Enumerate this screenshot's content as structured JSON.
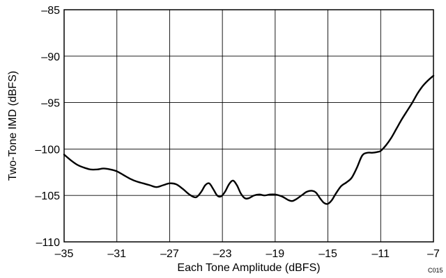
{
  "chart_data": {
    "type": "line",
    "title": "",
    "xlabel": "Each Tone Amplitude (dBFS)",
    "ylabel": "Two-Tone IMD (dBFS)",
    "xlim": [
      -35,
      -7
    ],
    "ylim": [
      -110,
      -85
    ],
    "x_ticks": [
      -35,
      -31,
      -27,
      -23,
      -19,
      -15,
      -11,
      -7
    ],
    "y_ticks": [
      -85,
      -90,
      -95,
      -100,
      -105,
      -110
    ],
    "x_tick_labels": [
      "–35",
      "–31",
      "–27",
      "–23",
      "–19",
      "–15",
      "–11",
      "–7"
    ],
    "y_tick_labels": [
      "–85",
      "–90",
      "–95",
      "–100",
      "–105",
      "–110"
    ],
    "grid": true,
    "series": [
      {
        "color": "#000000",
        "x": [
          -35,
          -34.5,
          -34,
          -33.5,
          -33,
          -32.5,
          -32,
          -31.5,
          -31,
          -30.5,
          -30,
          -29.5,
          -29,
          -28.5,
          -28,
          -27.5,
          -27,
          -26.5,
          -26,
          -25.5,
          -25,
          -24.6,
          -24.3,
          -24,
          -23.7,
          -23.4,
          -23.1,
          -22.8,
          -22.5,
          -22.2,
          -21.9,
          -21.6,
          -21.3,
          -21,
          -20.6,
          -20.2,
          -19.8,
          -19.4,
          -19,
          -18.5,
          -18,
          -17.7,
          -17.4,
          -17,
          -16.6,
          -16.2,
          -15.9,
          -15.6,
          -15.3,
          -15,
          -14.7,
          -14.4,
          -14,
          -13.6,
          -13.2,
          -12.8,
          -12.4,
          -12,
          -11.6,
          -11.2,
          -11,
          -10.6,
          -10.2,
          -9.8,
          -9.4,
          -9,
          -8.6,
          -8.2,
          -7.8,
          -7.4,
          -7
        ],
        "y": [
          -100.6,
          -101.2,
          -101.7,
          -102.0,
          -102.2,
          -102.2,
          -102.1,
          -102.2,
          -102.4,
          -102.8,
          -103.2,
          -103.5,
          -103.7,
          -103.9,
          -104.1,
          -103.9,
          -103.7,
          -103.8,
          -104.3,
          -104.9,
          -105.2,
          -104.6,
          -103.9,
          -103.7,
          -104.3,
          -105.0,
          -105.1,
          -104.6,
          -103.8,
          -103.4,
          -103.9,
          -104.8,
          -105.3,
          -105.3,
          -105.0,
          -104.9,
          -105.0,
          -104.9,
          -104.9,
          -105.1,
          -105.5,
          -105.6,
          -105.4,
          -105.0,
          -104.6,
          -104.5,
          -104.7,
          -105.3,
          -105.8,
          -105.9,
          -105.5,
          -104.8,
          -104.0,
          -103.6,
          -103.1,
          -102.0,
          -100.7,
          -100.4,
          -100.4,
          -100.3,
          -100.2,
          -99.6,
          -98.8,
          -97.8,
          -96.8,
          -95.9,
          -95.0,
          -94.0,
          -93.2,
          -92.6,
          -92.1
        ]
      }
    ],
    "annotations": [
      "C015"
    ]
  }
}
